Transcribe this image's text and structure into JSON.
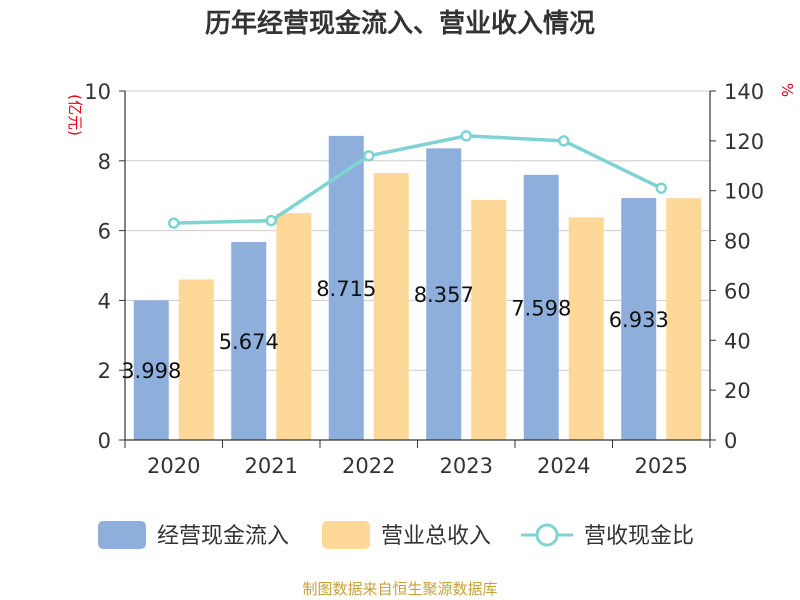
{
  "chart_data": {
    "type": "bar",
    "title": "历年经营现金流入、营业收入情况",
    "categories": [
      "2020",
      "2021",
      "2022",
      "2023",
      "2024",
      "2025"
    ],
    "series": [
      {
        "name": "经营现金流入",
        "kind": "bar",
        "axis": "left",
        "color": "#8eaedb",
        "values": [
          3.998,
          5.674,
          8.715,
          8.357,
          7.598,
          6.933
        ],
        "labels": [
          "3.998",
          "5.674",
          "8.715",
          "8.357",
          "7.598",
          "6.933"
        ]
      },
      {
        "name": "营业总收入",
        "kind": "bar",
        "axis": "left",
        "color": "#fed898",
        "values": [
          4.6,
          6.5,
          7.65,
          6.88,
          6.38,
          6.93
        ]
      },
      {
        "name": "营收现金比",
        "kind": "line",
        "axis": "right",
        "color": "#7fd3d3",
        "values": [
          87,
          88,
          114,
          122,
          120,
          101
        ]
      }
    ],
    "left_axis": {
      "unit": "(亿元)",
      "min": 0,
      "max": 10,
      "ticks": [
        0,
        2,
        4,
        6,
        8,
        10
      ]
    },
    "right_axis": {
      "unit": "%",
      "min": 0,
      "max": 140,
      "ticks": [
        0,
        20,
        40,
        60,
        80,
        100,
        120,
        140
      ]
    },
    "grid": true,
    "legend_position": "bottom"
  },
  "source_note": "制图数据来自恒生聚源数据库"
}
